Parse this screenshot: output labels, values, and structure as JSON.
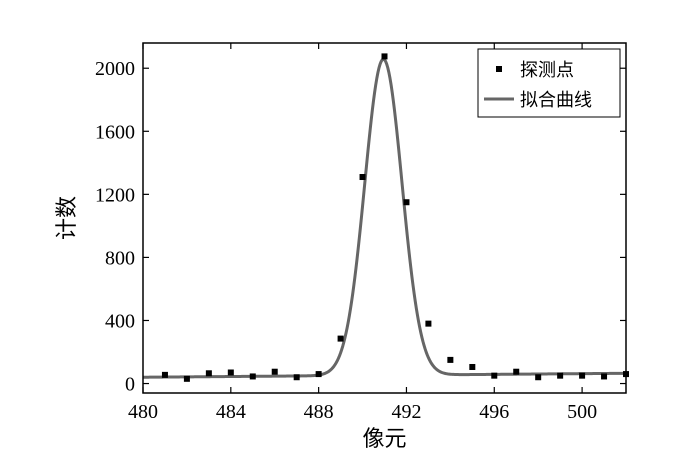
{
  "chart_data": {
    "type": "scatter",
    "title": "",
    "xlabel": "像元",
    "ylabel": "计数",
    "xlim": [
      480,
      502
    ],
    "ylim": [
      -60,
      2160
    ],
    "x_ticks": [
      480,
      484,
      488,
      492,
      496,
      500
    ],
    "x_tick_labels": [
      "480",
      "484",
      "488",
      "492",
      "496",
      "500"
    ],
    "y_ticks": [
      0,
      400,
      800,
      1200,
      1600,
      2000
    ],
    "y_tick_labels": [
      "0",
      "400",
      "800",
      "1200",
      "1600",
      "2000"
    ],
    "grid": false,
    "legend_position": "top-right",
    "series": [
      {
        "name": "探测点",
        "type": "scatter",
        "marker": "square",
        "color": "#000000",
        "x": [
          481,
          482,
          483,
          484,
          485,
          486,
          487,
          488,
          489,
          490,
          491,
          492,
          493,
          494,
          495,
          496,
          497,
          498,
          499,
          500,
          501,
          502
        ],
        "y": [
          55,
          30,
          65,
          70,
          45,
          75,
          40,
          60,
          285,
          1310,
          2075,
          1150,
          380,
          150,
          105,
          50,
          75,
          40,
          50,
          50,
          45,
          60
        ]
      },
      {
        "name": "拟合曲线",
        "type": "line",
        "color": "#666666",
        "model": {
          "baseline_start": 40,
          "baseline_end": 65,
          "amplitude": 2005,
          "center": 490.95,
          "sigma": 0.85
        },
        "x_range": [
          480,
          502
        ]
      }
    ]
  }
}
